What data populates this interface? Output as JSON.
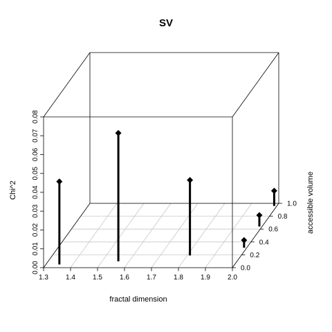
{
  "chart_data": {
    "type": "scatter",
    "subtype": "3d-scatterplot-with-drop-lines",
    "title": "SV",
    "xlabel": "fractal dimension",
    "ylabel": "accessible volume",
    "zlabel": "Chi^2",
    "xlim": [
      1.3,
      2.0
    ],
    "ylim": [
      0.0,
      1.0
    ],
    "zlim": [
      0.0,
      0.08
    ],
    "x_ticks": [
      "1.3",
      "1.4",
      "1.5",
      "1.6",
      "1.7",
      "1.8",
      "1.9",
      "2.0"
    ],
    "y_ticks": [
      "0.0",
      "0.2",
      "0.4",
      "0.6",
      "0.8",
      "1.0"
    ],
    "z_ticks": [
      "0.00",
      "0.01",
      "0.02",
      "0.03",
      "0.04",
      "0.05",
      "0.06",
      "0.07",
      "0.08"
    ],
    "grid": true,
    "box": true,
    "points": [
      {
        "x": 1.35,
        "y": 0.05,
        "z": 0.044
      },
      {
        "x": 1.56,
        "y": 0.1,
        "z": 0.068
      },
      {
        "x": 1.81,
        "y": 0.19,
        "z": 0.04
      },
      {
        "x": 1.99,
        "y": 0.31,
        "z": 0.004
      },
      {
        "x": 1.99,
        "y": 0.64,
        "z": 0.006
      },
      {
        "x": 1.99,
        "y": 0.96,
        "z": 0.008
      }
    ]
  }
}
